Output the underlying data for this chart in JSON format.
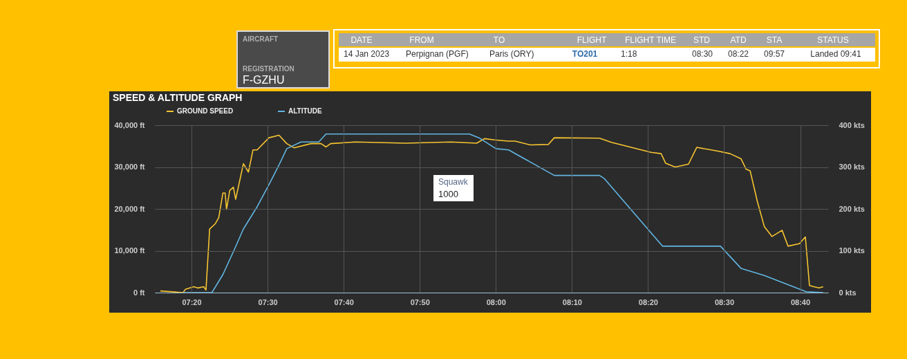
{
  "chart_data": {
    "type": "line",
    "title": "SPEED & ALTITUDE GRAPH",
    "series": [
      {
        "name": "GROUND SPEED",
        "color": "#f7c531",
        "axis": "y2",
        "x": [
          7.265,
          7.315,
          7.32,
          7.338,
          7.347,
          7.36,
          7.365,
          7.373,
          7.385,
          7.393,
          7.402,
          7.407,
          7.41,
          7.417,
          7.425,
          7.43,
          7.447,
          7.458,
          7.468,
          7.477,
          7.503,
          7.525,
          7.542,
          7.558,
          7.595,
          7.617,
          7.628,
          7.638,
          7.693,
          7.802,
          7.902,
          7.958,
          7.975,
          7.997,
          8.027,
          8.042,
          8.075,
          8.115,
          8.128,
          8.227,
          8.253,
          8.34,
          8.362,
          8.372,
          8.393,
          8.422,
          8.44,
          8.487,
          8.513,
          8.537,
          8.548,
          8.557,
          8.573,
          8.588,
          8.605,
          8.627,
          8.64,
          8.665,
          8.678,
          8.687,
          8.697,
          8.708,
          8.717
        ],
        "values": [
          4,
          0,
          8,
          14,
          11,
          14,
          6,
          152,
          164,
          179,
          238,
          238,
          199,
          244,
          252,
          223,
          308,
          288,
          341,
          341,
          370,
          376,
          356,
          346,
          356,
          356,
          348,
          356,
          360,
          357,
          360,
          357,
          368,
          365,
          362,
          362,
          353,
          354,
          370,
          369,
          359,
          335,
          332,
          309,
          300,
          307,
          347,
          338,
          332,
          320,
          295,
          291,
          217,
          158,
          134,
          149,
          111,
          117,
          133,
          17,
          14,
          11,
          14
        ]
      },
      {
        "name": "ALTITUDE",
        "color": "#62b6e3",
        "axis": "y",
        "x": [
          7.315,
          7.378,
          7.402,
          7.428,
          7.447,
          7.477,
          7.503,
          7.525,
          7.542,
          7.573,
          7.612,
          7.628,
          7.942,
          7.963,
          8.0,
          8.028,
          8.128,
          8.227,
          8.237,
          8.365,
          8.492,
          8.537,
          8.588,
          8.68,
          8.717
        ],
        "values": [
          0,
          0,
          4300,
          10500,
          15200,
          20500,
          25800,
          30500,
          34400,
          36000,
          36000,
          37900,
          37900,
          37000,
          34400,
          34100,
          28000,
          28000,
          27300,
          11100,
          11100,
          5800,
          4100,
          200,
          0
        ]
      }
    ],
    "xlim": [
      7.253,
      8.728
    ],
    "xticks": [
      {
        "value": 7.3333,
        "label": "07:20"
      },
      {
        "value": 7.5,
        "label": "07:30"
      },
      {
        "value": 7.6667,
        "label": "07:40"
      },
      {
        "value": 7.8333,
        "label": "07:50"
      },
      {
        "value": 8.0,
        "label": "08:00"
      },
      {
        "value": 8.1667,
        "label": "08:10"
      },
      {
        "value": 8.3333,
        "label": "08:20"
      },
      {
        "value": 8.5,
        "label": "08:30"
      },
      {
        "value": 8.6667,
        "label": "08:40"
      }
    ],
    "ylim": [
      0,
      40000
    ],
    "yticks": [
      {
        "value": 0,
        "label": "0 ft"
      },
      {
        "value": 10000,
        "label": "10,000 ft"
      },
      {
        "value": 20000,
        "label": "20,000 ft"
      },
      {
        "value": 30000,
        "label": "30,000 ft"
      },
      {
        "value": 40000,
        "label": "40,000 ft"
      }
    ],
    "y2lim": [
      0,
      400
    ],
    "y2ticks": [
      {
        "value": 0,
        "label": "0 kts"
      },
      {
        "value": 100,
        "label": "100 kts"
      },
      {
        "value": 200,
        "label": "200 kts"
      },
      {
        "value": 300,
        "label": "300 kts"
      },
      {
        "value": 400,
        "label": "400 kts"
      }
    ],
    "grid": true,
    "legend": "top left",
    "annotations": [
      "AIRCRAFT",
      "REGISTRATION",
      "F-GZHU",
      "DATE",
      "14 Jan 2023",
      "FROM",
      "Perpignan (PGF)",
      "TO",
      "Paris (ORY)",
      "FLIGHT",
      "TO201",
      "FLIGHT TIME",
      "1:18",
      "STD",
      "08:30",
      "ATD",
      "08:22",
      "STA",
      "09:57",
      "STATUS",
      "Landed 09:41",
      "Squawk",
      "1000"
    ]
  }
}
